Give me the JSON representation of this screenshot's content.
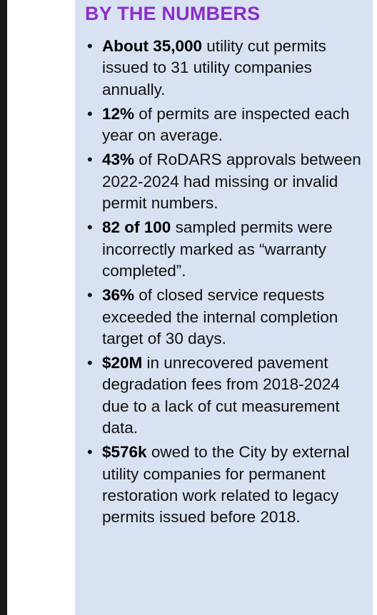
{
  "heading": "BY THE NUMBERS",
  "items": [
    {
      "stat": "About 35,000",
      "text": " utility cut permits issued to 31 utility companies annually."
    },
    {
      "stat": "12%",
      "text": " of permits are inspected each year on average."
    },
    {
      "stat": "43%",
      "text": " of RoDARS approvals between 2022-2024 had missing or invalid permit numbers."
    },
    {
      "stat": "82 of 100",
      "text": " sampled permits were incorrectly marked as “warranty completed”."
    },
    {
      "stat": "36%",
      "text": " of closed service requests exceeded the internal completion target of 30 days."
    },
    {
      "stat": "$20M",
      "text": " in unrecovered pavement degradation fees from 2018-2024 due to a lack of cut measurement data."
    },
    {
      "stat": "$576k",
      "text": " owed to the City by external utility companies for permanent restoration work related to legacy permits issued before 2018."
    }
  ],
  "colors": {
    "heading": "#8b2fc9",
    "panel_background": "#d9e2f2",
    "left_bar": "#1b1b1b"
  }
}
